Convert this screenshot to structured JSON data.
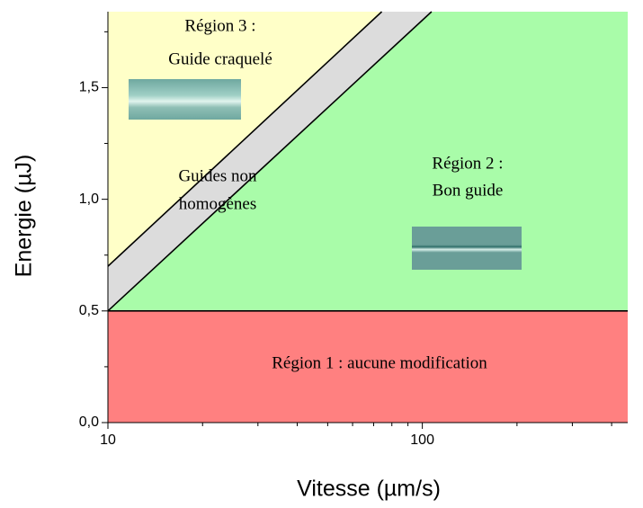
{
  "chart_data": {
    "type": "region",
    "xlabel": "Vitesse (µm/s)",
    "ylabel": "Energie (µJ)",
    "log_x": true,
    "xlim": [
      10,
      450
    ],
    "ylim": [
      0,
      1.84
    ],
    "xticks": [
      10,
      100
    ],
    "xticks_minor": [
      20,
      30,
      40,
      50,
      60,
      70,
      80,
      90,
      200,
      300,
      400
    ],
    "yticks": [
      {
        "value": 0,
        "label": "0,0"
      },
      {
        "value": 0.5,
        "label": "0,5"
      },
      {
        "value": 1.0,
        "label": "1,0"
      },
      {
        "value": 1.5,
        "label": "1,5"
      }
    ],
    "yticks_minor": [
      0.25,
      0.75,
      1.25,
      1.75
    ],
    "regions": [
      {
        "color": "#ff8080",
        "x": [
          10,
          450,
          450,
          10
        ],
        "y": [
          0,
          0,
          0.5,
          0.5
        ],
        "label": [
          "Région 1 : aucune modification"
        ]
      },
      {
        "color": "#a9fca9",
        "x": [
          10,
          107,
          450,
          450
        ],
        "y": [
          0.5,
          1.84,
          1.84,
          0.5
        ],
        "label": [
          "Région 2 :",
          "Bon guide"
        ]
      },
      {
        "color": "#ffffc8",
        "x": [
          10,
          74.3,
          10
        ],
        "y": [
          0.7,
          1.84,
          1.84
        ],
        "label": [
          "Région 3 :",
          "Guide craquelé"
        ]
      },
      {
        "color": "#dcdcdc",
        "x": [
          10,
          10,
          74.3,
          107
        ],
        "y": [
          0.5,
          0.7,
          1.84,
          1.84
        ],
        "label": [
          "Guides non",
          "homogènes"
        ]
      }
    ],
    "lines": [
      {
        "color": "#000000",
        "x": [
          10,
          107
        ],
        "y": [
          0.5,
          1.84
        ]
      },
      {
        "color": "#000000",
        "x": [
          10,
          74.3
        ],
        "y": [
          0.7,
          1.84
        ]
      },
      {
        "color": "#000000",
        "x": [
          10,
          450
        ],
        "y": [
          0.5,
          0.5
        ]
      }
    ]
  }
}
